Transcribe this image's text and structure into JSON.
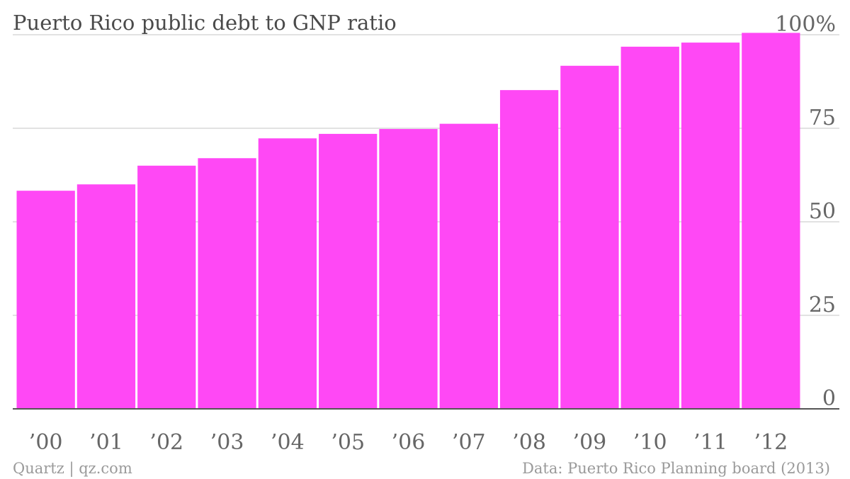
{
  "chart_data": {
    "type": "bar",
    "title": "Puerto Rico public debt to GNP ratio",
    "xlabel": "",
    "ylabel": "",
    "categories": [
      "’00",
      "’01",
      "’02",
      "’03",
      "’04",
      "’05",
      "’06",
      "’07",
      "’08",
      "’09",
      "’10",
      "’11",
      "’12"
    ],
    "series": [
      {
        "values": [
          58.3,
          60.0,
          65.0,
          67.0,
          72.3,
          73.5,
          74.8,
          76.2,
          85.2,
          91.7,
          96.8,
          97.9,
          100.5
        ]
      }
    ],
    "ylim": [
      0,
      100
    ],
    "yticks": [
      {
        "value": 0,
        "label": "0"
      },
      {
        "value": 25,
        "label": "25"
      },
      {
        "value": 50,
        "label": "50"
      },
      {
        "value": 75,
        "label": "75"
      },
      {
        "value": 100,
        "label": "100%"
      }
    ],
    "grid": true,
    "legend": "none",
    "bar_color": "#ff48f5"
  },
  "footer": {
    "source_left": "Quartz | qz.com",
    "source_right": "Data: Puerto Rico Planning board (2013)"
  }
}
